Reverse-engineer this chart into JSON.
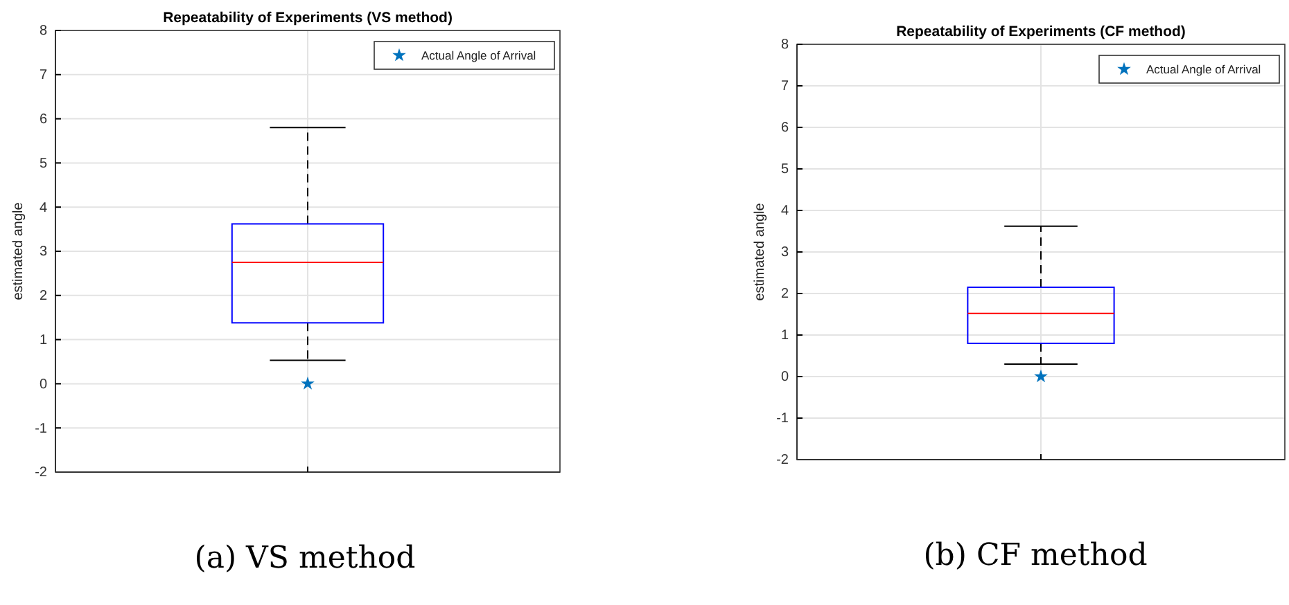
{
  "chart_data": [
    {
      "type": "box",
      "title": "Repeatability of Experiments (VS method)",
      "ylabel": "estimated angle",
      "categories": [
        null
      ],
      "ylim": [
        -2,
        8
      ],
      "yticks": [
        -2,
        -1,
        0,
        1,
        2,
        3,
        4,
        5,
        6,
        7,
        8
      ],
      "grid": true,
      "legend": "top right",
      "annotations": [
        "(a) VS method"
      ],
      "series": [
        {
          "color": "#0000ff",
          "boxes": [
            {
              "low": 0.53,
              "q1": 1.38,
              "median": 2.75,
              "q3": 3.62,
              "high": 5.8
            }
          ]
        },
        {
          "type": "scatter",
          "name": "Actual Angle of Arrival",
          "color": "#0072bd",
          "marker": "star",
          "values": [
            0
          ]
        }
      ]
    },
    {
      "type": "box",
      "title": "Repeatability of Experiments (CF method)",
      "ylabel": "estimated angle",
      "categories": [
        null
      ],
      "ylim": [
        -2,
        8
      ],
      "yticks": [
        -2,
        -1,
        0,
        1,
        2,
        3,
        4,
        5,
        6,
        7,
        8
      ],
      "grid": true,
      "legend": "top right",
      "annotations": [
        "(b) CF method"
      ],
      "series": [
        {
          "color": "#0000ff",
          "boxes": [
            {
              "low": 0.3,
              "q1": 0.8,
              "median": 1.52,
              "q3": 2.15,
              "high": 3.62
            }
          ]
        },
        {
          "type": "scatter",
          "name": "Actual Angle of Arrival",
          "color": "#0072bd",
          "marker": "star",
          "values": [
            0
          ]
        }
      ]
    }
  ]
}
